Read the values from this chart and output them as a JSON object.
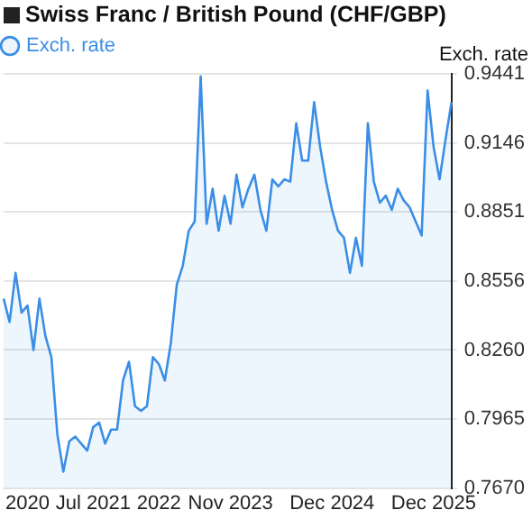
{
  "chart_data": {
    "type": "area",
    "title": "Swiss Franc / British Pound (CHF/GBP)",
    "ylabel": "Exch. rate",
    "categories": [
      null,
      null,
      null,
      null,
      "2020",
      null,
      null,
      null,
      null,
      null,
      null,
      null,
      null,
      null,
      null,
      "Jul 2021",
      null,
      null,
      null,
      null,
      null,
      null,
      null,
      null,
      null,
      null,
      "2022",
      null,
      null,
      null,
      null,
      null,
      null,
      null,
      null,
      null,
      null,
      null,
      "Nov 2023",
      null,
      null,
      null,
      null,
      null,
      null,
      null,
      null,
      null,
      null,
      null,
      null,
      null,
      null,
      null,
      null,
      "Dec 2024",
      null,
      null,
      null,
      null,
      null,
      null,
      null,
      null,
      null,
      null,
      null,
      null,
      null,
      null,
      null,
      null,
      "Dec 2025",
      null,
      null,
      null
    ],
    "ylim": [
      0.767,
      0.9441
    ],
    "yticks": [
      {
        "value": 0.767,
        "label": "0.7670"
      },
      {
        "value": 0.7965,
        "label": "0.7965"
      },
      {
        "value": 0.826,
        "label": "0.8260"
      },
      {
        "value": 0.8556,
        "label": "0.8556"
      },
      {
        "value": 0.8851,
        "label": "0.8851"
      },
      {
        "value": 0.9146,
        "label": "0.9146"
      },
      {
        "value": 0.9441,
        "label": "0.9441"
      }
    ],
    "grid": "y",
    "legend": "top left",
    "marker": "none",
    "series": [
      {
        "name": "Exch. rate",
        "color": "#3a8ee6",
        "values": [
          0.848,
          0.838,
          0.859,
          0.842,
          0.845,
          0.826,
          0.848,
          0.832,
          0.823,
          0.79,
          0.774,
          0.787,
          0.789,
          0.786,
          0.783,
          0.793,
          0.795,
          0.786,
          0.792,
          0.792,
          0.813,
          0.821,
          0.802,
          0.8,
          0.802,
          0.823,
          0.82,
          0.813,
          0.829,
          0.854,
          0.862,
          0.877,
          0.881,
          0.943,
          0.88,
          0.895,
          0.877,
          0.892,
          0.88,
          0.901,
          0.887,
          0.895,
          0.901,
          0.886,
          0.877,
          0.899,
          0.896,
          0.899,
          0.898,
          0.923,
          0.907,
          0.907,
          0.932,
          0.913,
          0.898,
          0.886,
          0.877,
          0.874,
          0.859,
          0.874,
          0.862,
          0.923,
          0.898,
          0.889,
          0.892,
          0.886,
          0.895,
          0.89,
          0.887,
          0.881,
          0.875,
          0.937,
          0.913,
          0.899,
          0.916,
          0.932
        ]
      }
    ]
  }
}
